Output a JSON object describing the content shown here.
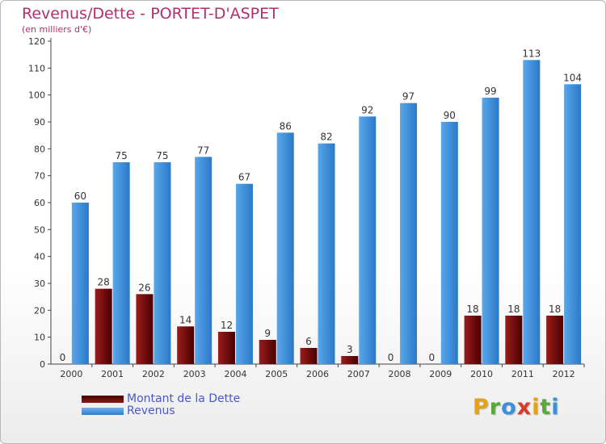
{
  "header": {
    "title": "Revenus/Dette - PORTET-D'ASPET",
    "subtitle": "(en milliers d'€)"
  },
  "chart_data": {
    "type": "bar",
    "title": "Revenus/Dette - PORTET-D'ASPET",
    "subtitle": "(en milliers d'€)",
    "categories": [
      "2000",
      "2001",
      "2002",
      "2003",
      "2004",
      "2005",
      "2006",
      "2007",
      "2008",
      "2009",
      "2010",
      "2011",
      "2012"
    ],
    "series": [
      {
        "name": "Montant de la Dette",
        "color": "#7a0a0a",
        "values": [
          0,
          28,
          26,
          14,
          12,
          9,
          6,
          3,
          0,
          0,
          18,
          18,
          18
        ]
      },
      {
        "name": "Revenus",
        "color": "#3d8fd9",
        "values": [
          60,
          75,
          75,
          77,
          67,
          86,
          82,
          92,
          97,
          90,
          99,
          113,
          104
        ]
      }
    ],
    "ylim": [
      0,
      120
    ],
    "yticks": [
      0,
      10,
      20,
      30,
      40,
      50,
      60,
      70,
      80,
      90,
      100,
      110,
      120
    ],
    "grid": false,
    "legend_position": "bottom-left"
  },
  "legend": {
    "debt_label": "Montant de la Dette",
    "revenue_label": "Revenus"
  },
  "branding": {
    "logo_letters": [
      "P",
      "r",
      "o",
      "x",
      "i",
      "t",
      "i"
    ],
    "logo_colors": [
      "#e3a21a",
      "#5aa83a",
      "#3d8fd9",
      "#d83a2a",
      "#e3a21a",
      "#5aa83a",
      "#3d8fd9"
    ]
  }
}
